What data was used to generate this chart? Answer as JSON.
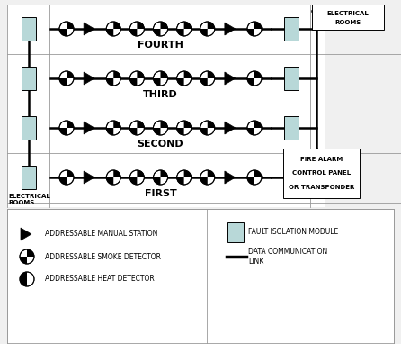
{
  "bg_color": "#f0f0f0",
  "diagram_bg": "#ffffff",
  "floor_labels": [
    "FOURTH",
    "THIRD",
    "SECOND",
    "FIRST"
  ],
  "fim_color": "#b8d8d8",
  "grid_color": "#aaaaaa",
  "line_color": "#000000",
  "text_color": "#000000"
}
